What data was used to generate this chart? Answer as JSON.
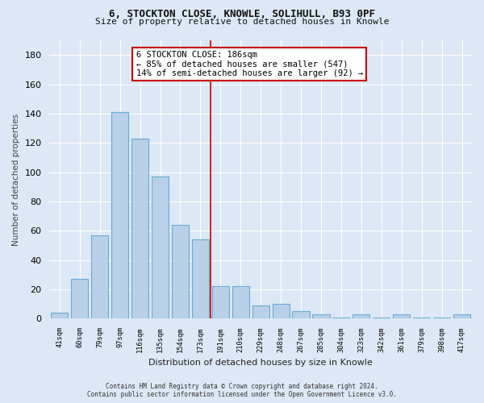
{
  "title1": "6, STOCKTON CLOSE, KNOWLE, SOLIHULL, B93 0PF",
  "title2": "Size of property relative to detached houses in Knowle",
  "xlabel": "Distribution of detached houses by size in Knowle",
  "ylabel": "Number of detached properties",
  "categories": [
    "41sqm",
    "60sqm",
    "79sqm",
    "97sqm",
    "116sqm",
    "135sqm",
    "154sqm",
    "173sqm",
    "191sqm",
    "210sqm",
    "229sqm",
    "248sqm",
    "267sqm",
    "285sqm",
    "304sqm",
    "323sqm",
    "342sqm",
    "361sqm",
    "379sqm",
    "398sqm",
    "417sqm"
  ],
  "values": [
    4,
    27,
    57,
    141,
    123,
    97,
    64,
    54,
    22,
    22,
    9,
    10,
    5,
    3,
    1,
    3,
    1,
    3,
    1,
    1,
    3
  ],
  "bar_color": "#b8d0e8",
  "bar_edge_color": "#6aaad4",
  "vline_x_index": 8.0,
  "vline_color": "#cc0000",
  "annotation_text": "6 STOCKTON CLOSE: 186sqm\n← 85% of detached houses are smaller (547)\n14% of semi-detached houses are larger (92) →",
  "annotation_box_color": "#ffffff",
  "annotation_box_edge_color": "#cc0000",
  "ylim": [
    0,
    190
  ],
  "yticks": [
    0,
    20,
    40,
    60,
    80,
    100,
    120,
    140,
    160,
    180
  ],
  "fig_bg_color": "#dce8f5",
  "plot_bg_color": "#dce8f5",
  "footer_line1": "Contains HM Land Registry data © Crown copyright and database right 2024.",
  "footer_line2": "Contains public sector information licensed under the Open Government Licence v3.0."
}
